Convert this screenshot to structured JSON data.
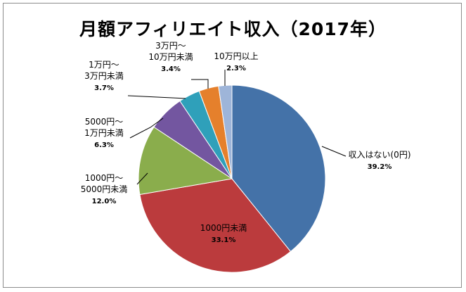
{
  "chart_data": {
    "type": "pie",
    "title": "月額アフィリエイト収入（2017年）",
    "slices": [
      {
        "label_lines": [
          "収入はない(0円)"
        ],
        "value": 39.2,
        "value_text": "39.2%",
        "color": "#4472a8"
      },
      {
        "label_lines": [
          "1000円未満"
        ],
        "value": 33.1,
        "value_text": "33.1%",
        "color": "#bb3b3d"
      },
      {
        "label_lines": [
          "1000円～",
          "5000円未満"
        ],
        "value": 12.0,
        "value_text": "12.0%",
        "color": "#8aad4c"
      },
      {
        "label_lines": [
          "5000円～",
          "1万円未満"
        ],
        "value": 6.3,
        "value_text": "6.3%",
        "color": "#7356a0"
      },
      {
        "label_lines": [
          "1万円～",
          "3万円未満"
        ],
        "value": 3.7,
        "value_text": "3.7%",
        "color": "#2fa0ba"
      },
      {
        "label_lines": [
          "3万円～",
          "10万円未満"
        ],
        "value": 3.4,
        "value_text": "3.4%",
        "color": "#e5802c"
      },
      {
        "label_lines": [
          "10万円以上"
        ],
        "value": 2.3,
        "value_text": "2.3%",
        "color": "#9eb5d9"
      }
    ],
    "start_angle_deg": 0,
    "direction": "clockwise",
    "legend": "none"
  }
}
